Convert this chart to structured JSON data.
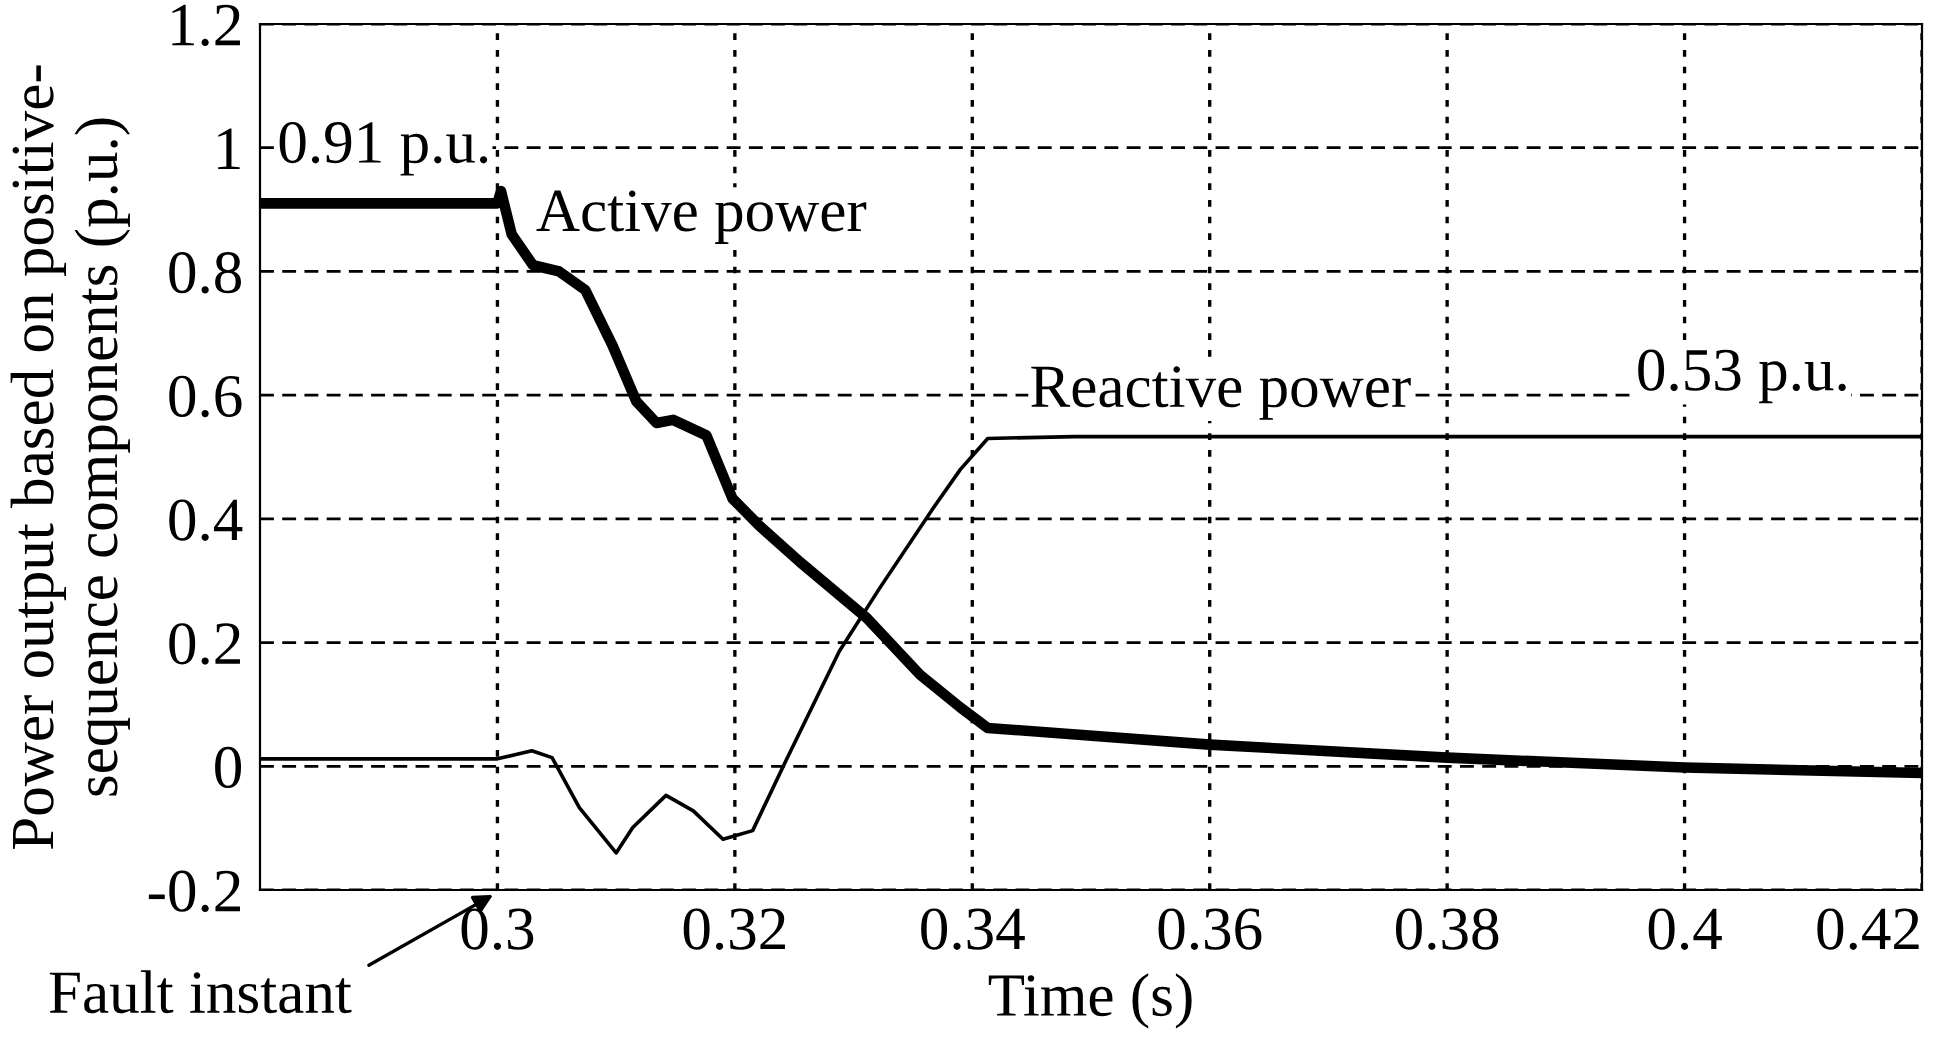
{
  "chart_data": {
    "type": "line",
    "xlabel": "Time (s)",
    "ylabel": "Power output based on positive-\nsequence components (p.u.)",
    "xlim": [
      0.28,
      0.42
    ],
    "xticks": [
      0.3,
      0.32,
      0.34,
      0.36,
      0.38,
      0.4,
      0.42
    ],
    "ylim": [
      -0.2,
      1.2
    ],
    "yticks": [
      -0.2,
      0,
      0.2,
      0.4,
      0.6,
      0.8,
      1,
      1.2
    ],
    "grid": true,
    "marker": "none",
    "line_style": "solid",
    "series": [
      {
        "name": "Active power",
        "color": "#000000",
        "x": [
          0.28,
          0.3,
          0.3003,
          0.3012,
          0.303,
          0.3052,
          0.3074,
          0.3097,
          0.3117,
          0.3134,
          0.3148,
          0.3176,
          0.3198,
          0.322,
          0.3255,
          0.3311,
          0.3356,
          0.339,
          0.3413,
          0.36,
          0.38,
          0.4,
          0.42
        ],
        "values": [
          0.91,
          0.91,
          0.93,
          0.86,
          0.81,
          0.8,
          0.77,
          0.68,
          0.59,
          0.555,
          0.56,
          0.535,
          0.433,
          0.39,
          0.33,
          0.24,
          0.148,
          0.095,
          0.062,
          0.035,
          0.014,
          -0.002,
          -0.011
        ]
      },
      {
        "name": "Reactive power",
        "color": "#000000",
        "x": [
          0.28,
          0.3,
          0.3029,
          0.3046,
          0.3069,
          0.31,
          0.3114,
          0.3142,
          0.3165,
          0.319,
          0.3215,
          0.3243,
          0.3288,
          0.3322,
          0.3367,
          0.339,
          0.3413,
          0.3486,
          0.42
        ],
        "values": [
          0.012,
          0.012,
          0.025,
          0.014,
          -0.067,
          -0.14,
          -0.099,
          -0.047,
          -0.072,
          -0.118,
          -0.104,
          0.009,
          0.186,
          0.288,
          0.417,
          0.48,
          0.53,
          0.533,
          0.533
        ]
      }
    ],
    "annotations": [
      {
        "text": "0.91 p.u.",
        "x": 0.29,
        "y": 0.91
      },
      {
        "text": "0.53 p.u.",
        "x": 0.42,
        "y": 0.533
      },
      "Fault instant"
    ]
  }
}
